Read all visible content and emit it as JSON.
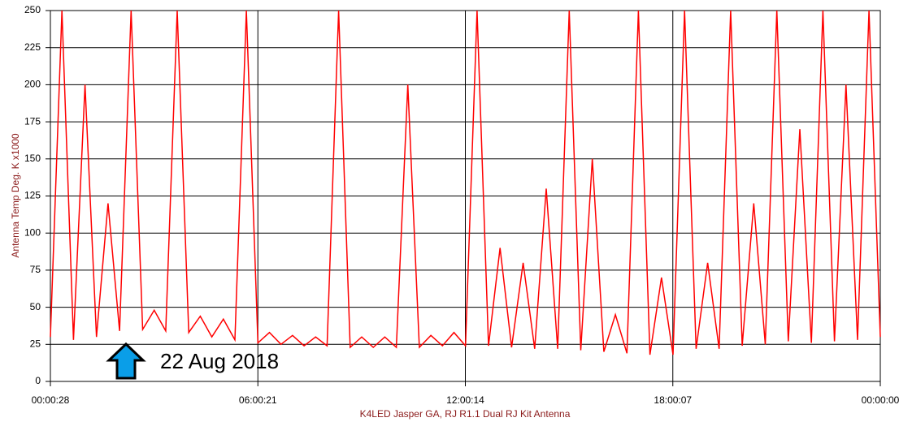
{
  "chart_data": {
    "type": "line",
    "x_label": "K4LED Jasper GA, RJ R1.1 Dual RJ Kit Antenna",
    "y_label": "Antenna Temp Deg. K x1000",
    "annotation": "22 Aug 2018",
    "xlim": [
      28,
      86400
    ],
    "xticks": [
      {
        "value": 28,
        "label": "00:00:28"
      },
      {
        "value": 21621,
        "label": "06:00:21"
      },
      {
        "value": 43214,
        "label": "12:00:14"
      },
      {
        "value": 64807,
        "label": "18:00:07"
      },
      {
        "value": 86400,
        "label": "00:00:00"
      }
    ],
    "ylim": [
      0,
      250
    ],
    "yticks": [
      0,
      25,
      50,
      75,
      100,
      125,
      150,
      175,
      200,
      225,
      250
    ],
    "grid": true,
    "x": [
      28,
      1228,
      2428,
      3628,
      4828,
      6028,
      7228,
      8428,
      9628,
      10828,
      12028,
      13228,
      14428,
      15628,
      16828,
      18028,
      19228,
      20428,
      21628,
      22828,
      24028,
      25228,
      26428,
      27628,
      28828,
      30028,
      31228,
      32428,
      33628,
      34828,
      36028,
      37228,
      38428,
      39628,
      40828,
      42028,
      43228,
      44428,
      45628,
      46828,
      48028,
      49228,
      50428,
      51628,
      52828,
      54028,
      55228,
      56428,
      57628,
      58828,
      60028,
      61228,
      62428,
      63628,
      64828,
      66028,
      67228,
      68428,
      69628,
      70828,
      72028,
      73228,
      74428,
      75628,
      76828,
      78028,
      79228,
      80428,
      81628,
      82828,
      84028,
      85228,
      86400
    ],
    "series": [
      {
        "color": "#ff0000",
        "values": [
          30,
          250,
          28,
          200,
          30,
          120,
          34,
          250,
          35,
          48,
          34,
          250,
          33,
          44,
          30,
          42,
          28,
          250,
          26,
          33,
          25,
          31,
          24,
          30,
          24,
          250,
          23,
          30,
          23,
          30,
          23,
          200,
          23,
          31,
          24,
          33,
          24,
          250,
          24,
          90,
          23,
          80,
          22,
          130,
          22,
          250,
          21,
          150,
          20,
          45,
          19,
          250,
          18,
          70,
          18,
          250,
          22,
          80,
          22,
          250,
          24,
          120,
          25,
          250,
          27,
          170,
          26,
          250,
          27,
          200,
          28,
          250,
          30
        ]
      }
    ]
  }
}
